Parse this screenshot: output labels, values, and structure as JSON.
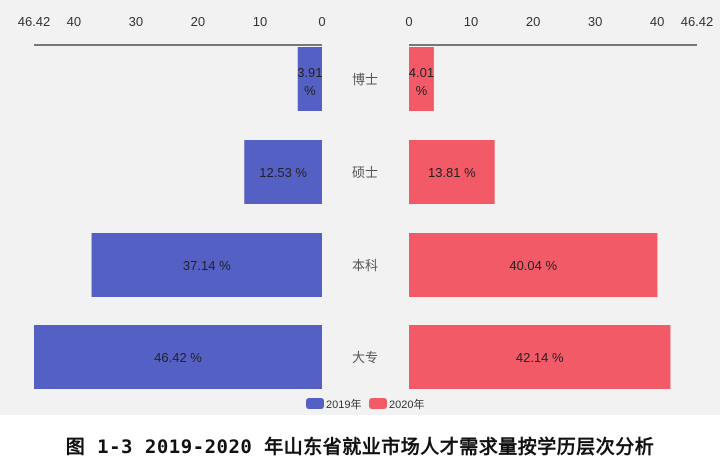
{
  "chart_data": {
    "type": "bar",
    "orientation": "horizontal-butterfly",
    "categories": [
      "博士",
      "硕士",
      "本科",
      "大专"
    ],
    "series": [
      {
        "name": "2019年",
        "values": [
          3.91,
          12.53,
          37.14,
          46.42
        ],
        "labels": [
          "3.91 %",
          "12.53 %",
          "37.14 %",
          "46.42 %"
        ],
        "color": "#5560c4",
        "side": "left"
      },
      {
        "name": "2020年",
        "values": [
          4.01,
          13.81,
          40.04,
          42.14
        ],
        "labels": [
          "4.01 %",
          "13.81 %",
          "40.04 %",
          "42.14 %"
        ],
        "color": "#f25a68",
        "side": "right"
      }
    ],
    "xlim": [
      0,
      46.42
    ],
    "ticks": [
      "0",
      "10",
      "20",
      "30",
      "40",
      "46.42"
    ],
    "tick_values": [
      0,
      10,
      20,
      30,
      40,
      46.42
    ],
    "legend": "bottom",
    "grid": false
  },
  "caption": "图 1-3 2019-2020 年山东省就业市场人才需求量按学历层次分析"
}
